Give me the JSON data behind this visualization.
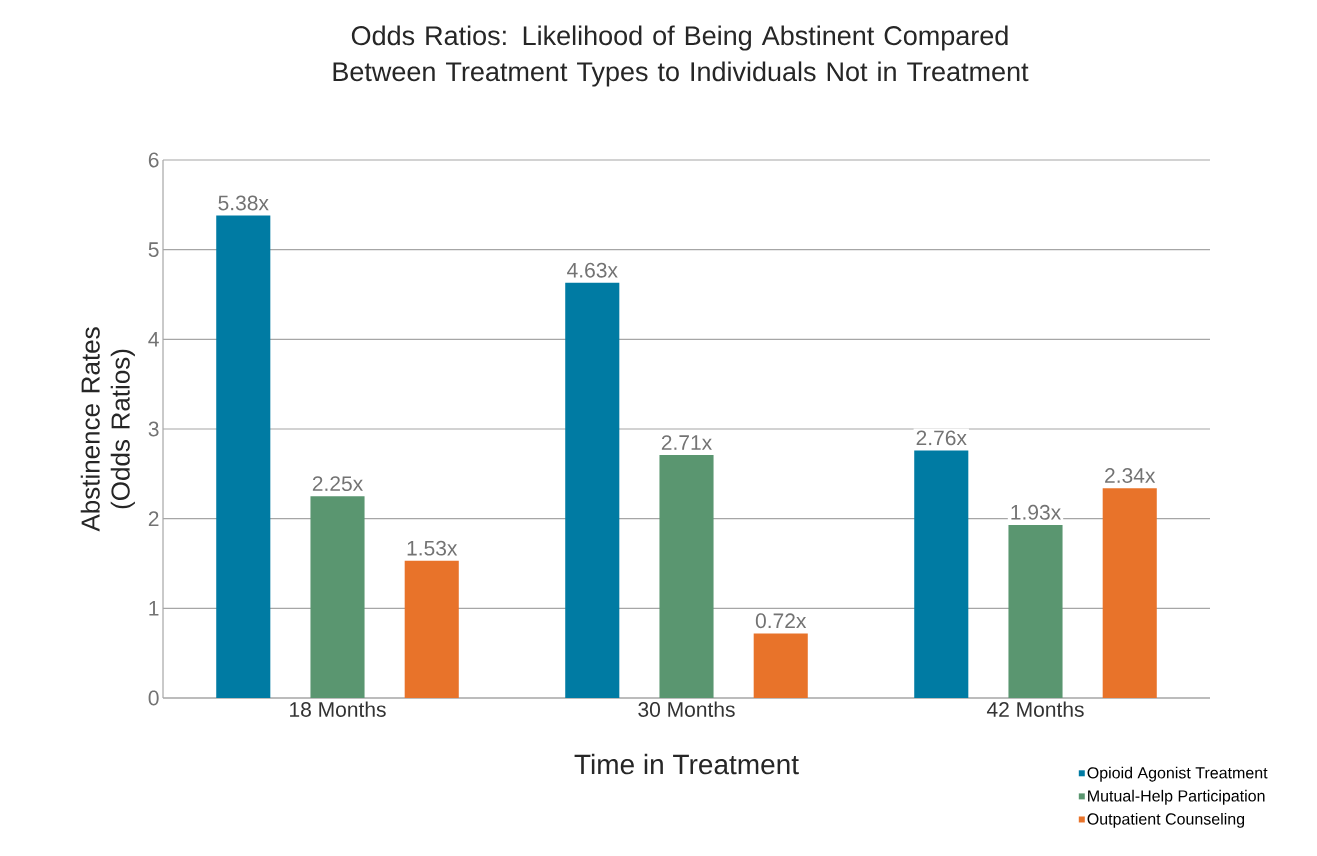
{
  "chart_data": {
    "type": "bar",
    "title": "Odds Ratios: Likelihood of Being Abstinent Compared Between Treatment Types to Individuals Not in Treatment",
    "xlabel": "Time in Treatment",
    "ylabel": "Abstinence Rates (Odds Ratios)",
    "categories": [
      "18 Months",
      "30 Months",
      "42 Months"
    ],
    "series": [
      {
        "name": "Opioid Agonist Treatment",
        "color": "#007ba3",
        "values": [
          5.38,
          4.63,
          2.76
        ],
        "value_labels": [
          "5.38x",
          "4.63x",
          "2.76x"
        ]
      },
      {
        "name": "Mutual-Help Participation",
        "color": "#5a9670",
        "values": [
          2.25,
          2.71,
          1.93
        ],
        "value_labels": [
          "2.25x",
          "2.71x",
          "1.93x"
        ]
      },
      {
        "name": "Outpatient Counseling",
        "color": "#e8732a",
        "values": [
          1.53,
          0.72,
          2.34
        ],
        "value_labels": [
          "1.53x",
          "0.72x",
          "2.34x"
        ]
      }
    ],
    "ylim": [
      0,
      6
    ],
    "yticks": [
      0,
      1,
      2,
      3,
      4,
      5,
      6
    ],
    "grid": "y",
    "legend": "bottom right"
  }
}
